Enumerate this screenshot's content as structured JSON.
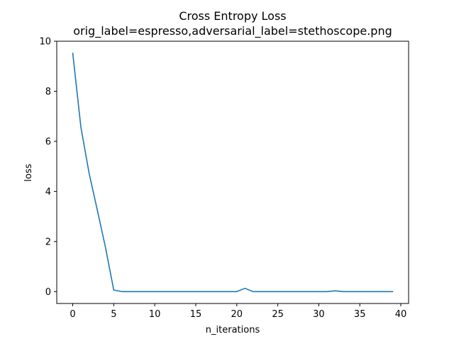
{
  "chart_data": {
    "type": "line",
    "title": "Cross Entropy Loss",
    "subtitle": "orig_label=espresso,adversarial_label=stethoscope.png",
    "xlabel": "n_iterations",
    "ylabel": "loss",
    "xlim": [
      -1.95,
      40.95
    ],
    "ylim": [
      -0.475,
      10.0
    ],
    "xticks": [
      0,
      5,
      10,
      15,
      20,
      25,
      30,
      35,
      40
    ],
    "yticks": [
      0,
      2,
      4,
      6,
      8,
      10
    ],
    "grid": false,
    "legend": "none",
    "series": [
      {
        "color": "#1f77b4",
        "x": [
          0,
          1,
          2,
          3,
          4,
          5,
          6,
          7,
          8,
          9,
          10,
          11,
          12,
          13,
          14,
          15,
          16,
          17,
          18,
          19,
          20,
          21,
          22,
          23,
          24,
          25,
          26,
          27,
          28,
          29,
          30,
          31,
          32,
          33,
          34,
          35,
          36,
          37,
          38,
          39
        ],
        "y": [
          9.52,
          6.55,
          4.72,
          3.25,
          1.75,
          0.06,
          0.0,
          0.0,
          0.0,
          0.0,
          0.0,
          0.0,
          0.0,
          0.0,
          0.0,
          0.0,
          0.0,
          0.0,
          0.0,
          0.0,
          0.0,
          0.13,
          0.0,
          0.0,
          0.0,
          0.0,
          0.0,
          0.0,
          0.0,
          0.0,
          0.0,
          0.0,
          0.03,
          0.0,
          0.0,
          0.0,
          0.0,
          0.0,
          0.0,
          0.0
        ]
      }
    ]
  }
}
